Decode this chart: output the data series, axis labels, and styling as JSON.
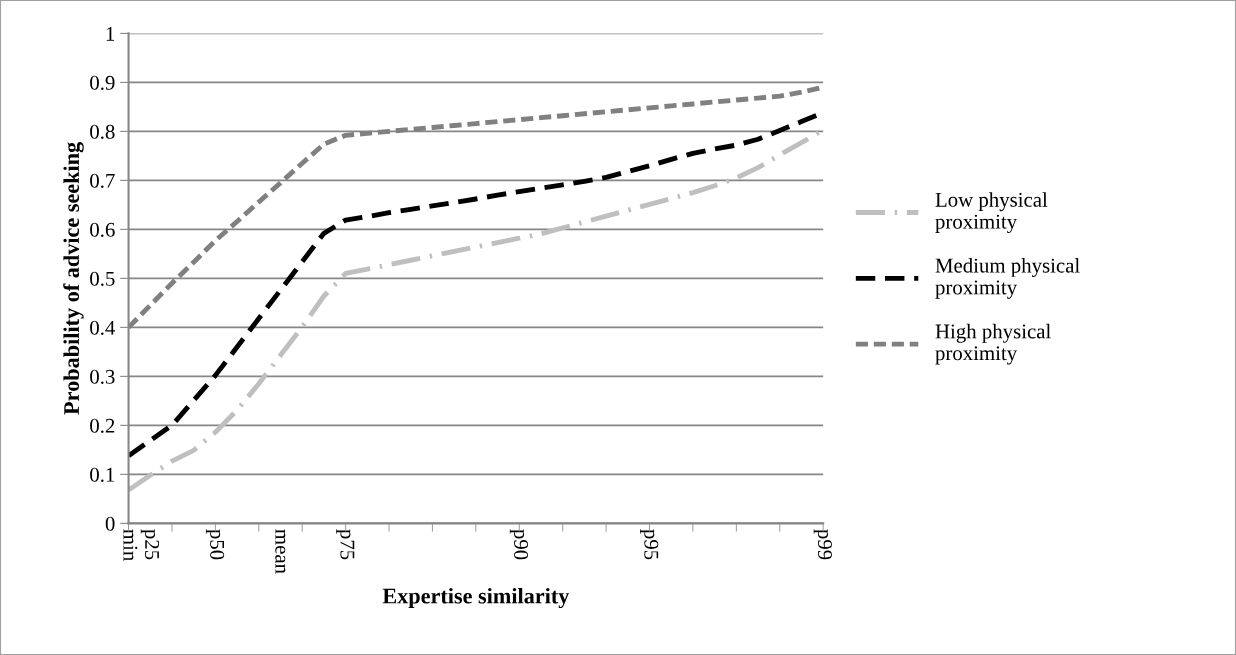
{
  "chart_data": {
    "type": "line",
    "xlabel": "Expertise similarity",
    "ylabel": "Probability of advice seeking",
    "categories": [
      "min",
      "p25",
      null,
      null,
      "p50",
      null,
      null,
      "mean",
      null,
      null,
      "p75",
      null,
      null,
      null,
      null,
      null,
      null,
      null,
      "p90",
      null,
      null,
      null,
      null,
      null,
      "p95",
      null,
      null,
      null,
      null,
      null,
      null,
      null,
      "p99"
    ],
    "ylim": [
      0,
      1
    ],
    "yticks": [
      0,
      0.1,
      0.2,
      0.3,
      0.4,
      0.5,
      0.6,
      0.7,
      0.8,
      0.9,
      1
    ],
    "grid": "y",
    "legend": "right",
    "series": [
      {
        "name": "Low physical proximity",
        "color": "#bfbfbf",
        "line_style": "dashdot",
        "values": [
          0.068,
          0.098,
          0.127,
          0.149,
          0.186,
          0.231,
          0.285,
          0.343,
          0.401,
          0.464,
          0.51,
          0.519,
          0.528,
          0.537,
          0.546,
          0.555,
          0.564,
          0.573,
          0.582,
          0.591,
          0.603,
          0.615,
          0.627,
          0.639,
          0.651,
          0.663,
          0.675,
          0.689,
          0.705,
          0.726,
          0.752,
          0.777,
          0.803
        ]
      },
      {
        "name": "Medium physical proximity",
        "color": "#000000",
        "line_style": "dashed",
        "values": [
          0.138,
          0.169,
          0.2,
          0.251,
          0.302,
          0.36,
          0.418,
          0.476,
          0.534,
          0.592,
          0.619,
          0.626,
          0.634,
          0.641,
          0.648,
          0.655,
          0.662,
          0.67,
          0.677,
          0.684,
          0.691,
          0.698,
          0.706,
          0.718,
          0.73,
          0.743,
          0.755,
          0.764,
          0.772,
          0.784,
          0.802,
          0.82,
          0.838
        ]
      },
      {
        "name": "High physical proximity",
        "color": "#808080",
        "line_style": "shortdash",
        "values": [
          0.4,
          0.445,
          0.49,
          0.533,
          0.577,
          0.616,
          0.656,
          0.695,
          0.735,
          0.774,
          0.792,
          0.796,
          0.8,
          0.804,
          0.808,
          0.812,
          0.816,
          0.82,
          0.824,
          0.828,
          0.832,
          0.836,
          0.84,
          0.844,
          0.848,
          0.852,
          0.856,
          0.86,
          0.864,
          0.868,
          0.872,
          0.88,
          0.89
        ]
      }
    ]
  }
}
